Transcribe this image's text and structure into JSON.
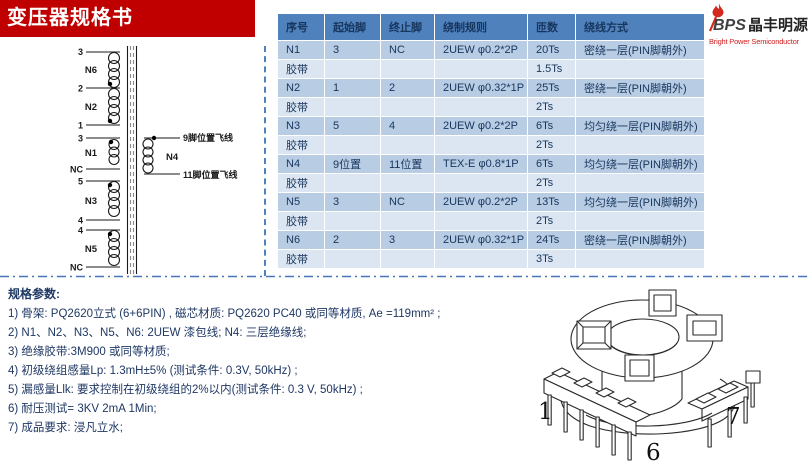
{
  "page": {
    "title": "变压器规格书"
  },
  "logo": {
    "mark": "BPS",
    "brand_cn": "晶丰明源",
    "brand_en": "Bright Power Semiconductor"
  },
  "table": {
    "headers": [
      "序号",
      "起始脚",
      "终止脚",
      "绕制规则",
      "匝数",
      "绕线方式"
    ],
    "rows": [
      [
        "N1",
        "3",
        "NC",
        "2UEW φ0.2*2P",
        "20Ts",
        "密绕一层(PIN脚朝外)"
      ],
      [
        "胶带",
        "",
        "",
        "",
        "1.5Ts",
        ""
      ],
      [
        "N2",
        "1",
        "2",
        "2UEW φ0.32*1P",
        "25Ts",
        "密绕一层(PIN脚朝外)"
      ],
      [
        "胶带",
        "",
        "",
        "",
        "2Ts",
        ""
      ],
      [
        "N3",
        "5",
        "4",
        "2UEW φ0.2*2P",
        "6Ts",
        "均匀绕一层(PIN脚朝外)"
      ],
      [
        "胶带",
        "",
        "",
        "",
        "2Ts",
        ""
      ],
      [
        "N4",
        "9位置",
        "11位置",
        "TEX-E φ0.8*1P",
        "6Ts",
        "均匀绕一层(PIN脚朝外)"
      ],
      [
        "胶带",
        "",
        "",
        "",
        "2Ts",
        ""
      ],
      [
        "N5",
        "3",
        "NC",
        "2UEW φ0.2*2P",
        "13Ts",
        "均匀绕一层(PIN脚朝外)"
      ],
      [
        "胶带",
        "",
        "",
        "",
        "2Ts",
        ""
      ],
      [
        "N6",
        "2",
        "3",
        "2UEW φ0.32*1P",
        "24Ts",
        "密绕一层(PIN脚朝外)"
      ],
      [
        "胶带",
        "",
        "",
        "",
        "3Ts",
        ""
      ]
    ]
  },
  "diagram": {
    "pin_labels": [
      "3",
      "2",
      "1",
      "3",
      "NC",
      "5",
      "4",
      "4",
      "NC"
    ],
    "winding_names": [
      "N6",
      "N2",
      "N1",
      "N3",
      "N5",
      "N4"
    ],
    "fly_top": "9脚位置飞线",
    "fly_bottom": "11脚位置飞线"
  },
  "specs": {
    "title": "规格参数:",
    "items": [
      "1)  骨架: PQ2620立式 (6+6PIN) , 磁芯材质: PQ2620 PC40 或同等材质, Ae =119mm² ;",
      "2)  N1、N2、N3、N5、N6: 2UEW 漆包线; N4: 三层绝缘线;",
      "3)  绝缘胶带:3M900 或同等材质;",
      "4)  初级绕组感量Lp: 1.3mH±5% (测试条件: 0.3V, 50kHz) ;",
      "5)  漏感量Llk: 要求控制在初级绕组的2%以内(测试条件: 0.3 V, 50kHz) ;",
      "6)  耐压测试= 3KV 2mA 1Min;",
      "7)  成品要求: 浸凡立水;"
    ]
  },
  "bobbin": {
    "pin_labels": [
      "1",
      "6",
      "7"
    ]
  },
  "colors": {
    "accent_red": "#c00000",
    "table_header_blue": "#4f81bd",
    "winding_row_blue": "#b8cce4",
    "tape_row_blue": "#dce6f2",
    "text_navy": "#17365d",
    "divider_blue": "#4576be"
  }
}
